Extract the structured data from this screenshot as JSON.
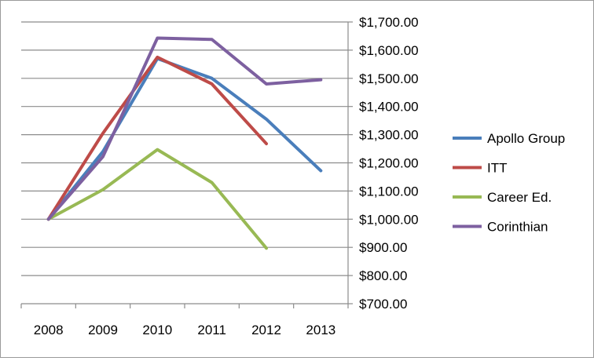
{
  "chart_data": {
    "type": "line",
    "title": "",
    "xlabel": "",
    "ylabel": "",
    "categories": [
      "2008",
      "2009",
      "2010",
      "2011",
      "2012",
      "2013"
    ],
    "ylim": [
      700,
      1700
    ],
    "y_ticks": [
      1700,
      1600,
      1500,
      1400,
      1300,
      1200,
      1100,
      1000,
      900,
      800,
      700
    ],
    "y_tick_labels": [
      "$1,700.00",
      "$1,600.00",
      "$1,500.00",
      "$1,400.00",
      "$1,300.00",
      "$1,200.00",
      "$1,100.00",
      "$1,000.00",
      "$900.00",
      "$800.00",
      "$700.00"
    ],
    "y_axis_position": "right",
    "grid": true,
    "legend_position": "right",
    "series": [
      {
        "name": "Apollo Group",
        "color": "#4a7ebb",
        "values": [
          1000,
          1240,
          1570,
          1500,
          1355,
          1172
        ]
      },
      {
        "name": "ITT",
        "color": "#be4b48",
        "values": [
          1000,
          1305,
          1575,
          1480,
          1268,
          null
        ]
      },
      {
        "name": "Career Ed.",
        "color": "#98b954",
        "values": [
          1000,
          1105,
          1247,
          1130,
          897,
          null
        ]
      },
      {
        "name": "Corinthian",
        "color": "#7d60a0",
        "values": [
          1000,
          1222,
          1643,
          1638,
          1480,
          1495
        ]
      }
    ]
  }
}
